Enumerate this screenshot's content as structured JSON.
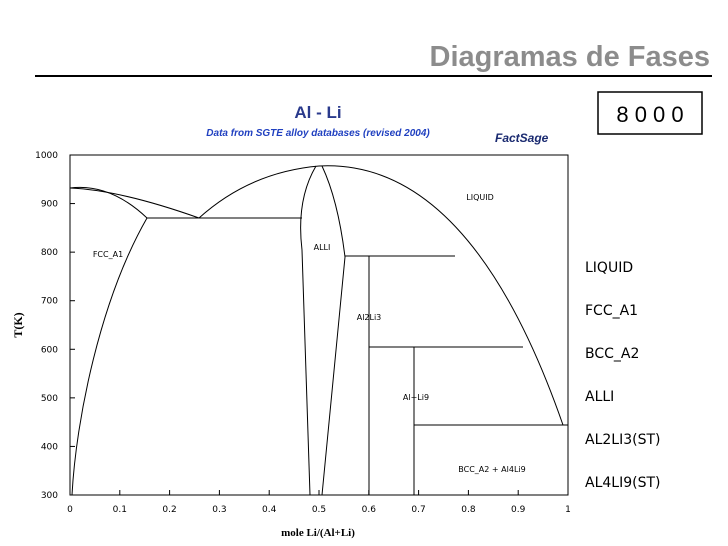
{
  "header": {
    "title": "Diagramas de Fases",
    "counter": "8 0 0 0"
  },
  "plot": {
    "title": "Al - Li",
    "subtitle": "Data from SGTE alloy databases (revised 2004)",
    "logo": "FactSage",
    "y_axis": {
      "label": "T(K)",
      "ticks": [
        1000,
        900,
        800,
        700,
        600,
        500,
        400,
        300
      ]
    },
    "x_axis": {
      "label": "mole Li/(Al+Li)",
      "ticks": [
        0,
        0.1,
        0.2,
        0.3,
        0.4,
        0.5,
        0.6,
        0.7,
        0.8,
        0.9,
        1
      ]
    },
    "regions": [
      "LIQUID",
      "FCC_A1",
      "ALLI",
      "Al2Li3",
      "Al+Li9",
      "BCC_A2 + Al4Li9"
    ]
  },
  "legend": [
    "LIQUID",
    "FCC_A1",
    "BCC_A2",
    "ALLI",
    "AL2LI3(ST)",
    "AL4LI9(ST)"
  ]
}
